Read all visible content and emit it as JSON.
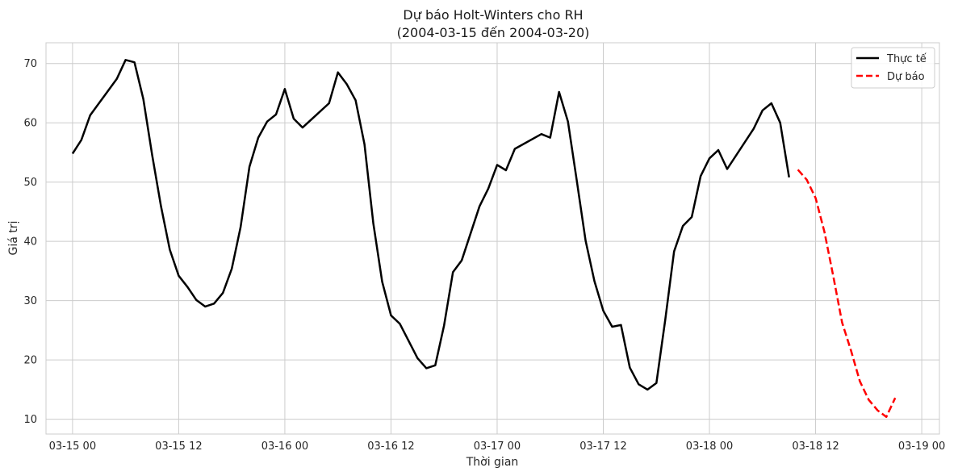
{
  "chart_data": {
    "type": "line",
    "title": "Dự báo Holt-Winters cho RH",
    "subtitle": "(2004-03-15 đến 2004-03-20)",
    "xlabel": "Thời gian",
    "ylabel": "Giá trị",
    "x_tick_labels": [
      "03-15 00",
      "03-15 12",
      "03-16 00",
      "03-16 12",
      "03-17 00",
      "03-17 12",
      "03-18 00",
      "03-18 12",
      "03-19 00"
    ],
    "y_ticks": [
      10,
      20,
      30,
      40,
      50,
      60,
      70
    ],
    "xlim": [
      "2004-03-14 21:00",
      "2004-03-19 02:00"
    ],
    "ylim": [
      7.5,
      73.5
    ],
    "grid": true,
    "legend_position": "top-right",
    "series": [
      {
        "name": "Thực tế",
        "color": "#000000",
        "style": "solid",
        "points": [
          [
            "2004-03-15 00:00",
            54.8
          ],
          [
            "2004-03-15 01:00",
            57.1
          ],
          [
            "2004-03-15 02:00",
            61.3
          ],
          [
            "2004-03-15 05:00",
            67.4
          ],
          [
            "2004-03-15 06:00",
            70.6
          ],
          [
            "2004-03-15 07:00",
            70.2
          ],
          [
            "2004-03-15 08:00",
            64.0
          ],
          [
            "2004-03-15 09:00",
            54.6
          ],
          [
            "2004-03-15 10:00",
            45.9
          ],
          [
            "2004-03-15 11:00",
            38.6
          ],
          [
            "2004-03-15 12:00",
            34.2
          ],
          [
            "2004-03-15 13:00",
            32.3
          ],
          [
            "2004-03-15 14:00",
            30.1
          ],
          [
            "2004-03-15 15:00",
            29.0
          ],
          [
            "2004-03-15 16:00",
            29.5
          ],
          [
            "2004-03-15 17:00",
            31.3
          ],
          [
            "2004-03-15 18:00",
            35.4
          ],
          [
            "2004-03-15 19:00",
            42.4
          ],
          [
            "2004-03-15 20:00",
            52.6
          ],
          [
            "2004-03-15 21:00",
            57.5
          ],
          [
            "2004-03-15 22:00",
            60.2
          ],
          [
            "2004-03-15 23:00",
            61.4
          ],
          [
            "2004-03-16 00:00",
            65.7
          ],
          [
            "2004-03-16 01:00",
            60.7
          ],
          [
            "2004-03-16 02:00",
            59.2
          ],
          [
            "2004-03-16 05:00",
            63.3
          ],
          [
            "2004-03-16 06:00",
            68.5
          ],
          [
            "2004-03-16 07:00",
            66.5
          ],
          [
            "2004-03-16 08:00",
            63.8
          ],
          [
            "2004-03-16 09:00",
            56.4
          ],
          [
            "2004-03-16 10:00",
            43.1
          ],
          [
            "2004-03-16 11:00",
            33.2
          ],
          [
            "2004-03-16 12:00",
            27.5
          ],
          [
            "2004-03-16 13:00",
            26.1
          ],
          [
            "2004-03-16 15:00",
            20.3
          ],
          [
            "2004-03-16 16:00",
            18.6
          ],
          [
            "2004-03-16 17:00",
            19.1
          ],
          [
            "2004-03-16 18:00",
            25.8
          ],
          [
            "2004-03-16 19:00",
            34.8
          ],
          [
            "2004-03-16 20:00",
            36.8
          ],
          [
            "2004-03-16 22:00",
            45.9
          ],
          [
            "2004-03-16 23:00",
            48.9
          ],
          [
            "2004-03-17 00:00",
            52.9
          ],
          [
            "2004-03-17 01:00",
            52.0
          ],
          [
            "2004-03-17 02:00",
            55.6
          ],
          [
            "2004-03-17 05:00",
            58.1
          ],
          [
            "2004-03-17 06:00",
            57.5
          ],
          [
            "2004-03-17 07:00",
            65.2
          ],
          [
            "2004-03-17 08:00",
            60.2
          ],
          [
            "2004-03-17 09:00",
            50.3
          ],
          [
            "2004-03-17 10:00",
            40.1
          ],
          [
            "2004-03-17 11:00",
            33.3
          ],
          [
            "2004-03-17 12:00",
            28.3
          ],
          [
            "2004-03-17 13:00",
            25.6
          ],
          [
            "2004-03-17 14:00",
            25.9
          ],
          [
            "2004-03-17 15:00",
            18.7
          ],
          [
            "2004-03-17 16:00",
            15.9
          ],
          [
            "2004-03-17 17:00",
            15.0
          ],
          [
            "2004-03-17 18:00",
            16.1
          ],
          [
            "2004-03-17 19:00",
            26.7
          ],
          [
            "2004-03-17 20:00",
            38.3
          ],
          [
            "2004-03-17 21:00",
            42.6
          ],
          [
            "2004-03-17 22:00",
            44.1
          ],
          [
            "2004-03-17 23:00",
            51.0
          ],
          [
            "2004-03-18 00:00",
            54.0
          ],
          [
            "2004-03-18 01:00",
            55.4
          ],
          [
            "2004-03-18 02:00",
            52.2
          ],
          [
            "2004-03-18 05:00",
            59.0
          ],
          [
            "2004-03-18 06:00",
            62.1
          ],
          [
            "2004-03-18 07:00",
            63.3
          ],
          [
            "2004-03-18 08:00",
            60.0
          ],
          [
            "2004-03-18 09:00",
            50.8
          ]
        ]
      },
      {
        "name": "Dự báo",
        "color": "#ff0000",
        "style": "dashed",
        "points": [
          [
            "2004-03-18 10:00",
            52.1
          ],
          [
            "2004-03-18 11:00",
            50.4
          ],
          [
            "2004-03-18 12:00",
            47.3
          ],
          [
            "2004-03-18 13:00",
            41.6
          ],
          [
            "2004-03-18 14:00",
            34.1
          ],
          [
            "2004-03-18 15:00",
            26.3
          ],
          [
            "2004-03-18 16:00",
            21.6
          ],
          [
            "2004-03-18 17:00",
            16.4
          ],
          [
            "2004-03-18 18:00",
            13.3
          ],
          [
            "2004-03-18 19:00",
            11.5
          ],
          [
            "2004-03-18 20:00",
            10.4
          ],
          [
            "2004-03-18 21:00",
            13.6
          ]
        ]
      }
    ]
  }
}
